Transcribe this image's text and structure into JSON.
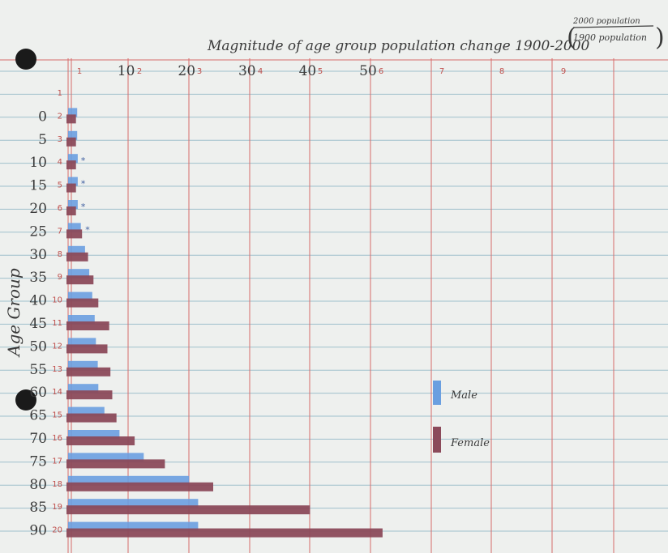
{
  "chart_data": {
    "type": "bar",
    "orientation": "horizontal",
    "title": "Magnitude of age group population change 1900-2000",
    "title_fraction": {
      "numerator": "2000 population",
      "denominator": "1900 population"
    },
    "ylabel": "Age Group",
    "xlim": [
      0,
      60
    ],
    "x_ticks": [
      "10",
      "20",
      "30",
      "40",
      "50"
    ],
    "x_tick_values": [
      10,
      20,
      30,
      40,
      50
    ],
    "categories": [
      "0",
      "5",
      "10",
      "15",
      "20",
      "25",
      "30",
      "35",
      "40",
      "45",
      "50",
      "55",
      "60",
      "65",
      "70",
      "75",
      "80",
      "85",
      "90"
    ],
    "series": [
      {
        "name": "Male",
        "color": "#6a9fe0",
        "values": [
          1.5,
          1.5,
          1.6,
          1.6,
          1.6,
          2.1,
          2.8,
          3.5,
          4.0,
          4.4,
          4.6,
          4.9,
          5.0,
          6.0,
          8.5,
          12.5,
          20.0,
          21.5,
          21.5
        ]
      },
      {
        "name": "Female",
        "color": "#8b4a5a",
        "values": [
          1.3,
          1.3,
          1.3,
          1.3,
          1.3,
          2.3,
          3.3,
          4.2,
          5.0,
          6.8,
          6.5,
          7.0,
          7.3,
          8.0,
          11.0,
          16.0,
          24.0,
          40.0,
          52.0
        ]
      }
    ],
    "star_rows": [
      "10",
      "15",
      "20",
      "25"
    ],
    "legend_position": "right",
    "grid": true
  },
  "paper": {
    "top_numbers": [
      "1",
      "2",
      "3",
      "4",
      "5",
      "6",
      "7",
      "8",
      "9"
    ],
    "row_numbers": [
      "1",
      "2",
      "3",
      "4",
      "5",
      "6",
      "7",
      "8",
      "9",
      "10",
      "11",
      "12",
      "13",
      "14",
      "15",
      "16",
      "17",
      "18",
      "19",
      "20"
    ]
  },
  "colors": {
    "paper": "#eef0ee",
    "rule_blue": "#9fc0cc",
    "margin_red": "#d76b6b",
    "hole": "#1a1a1a"
  }
}
